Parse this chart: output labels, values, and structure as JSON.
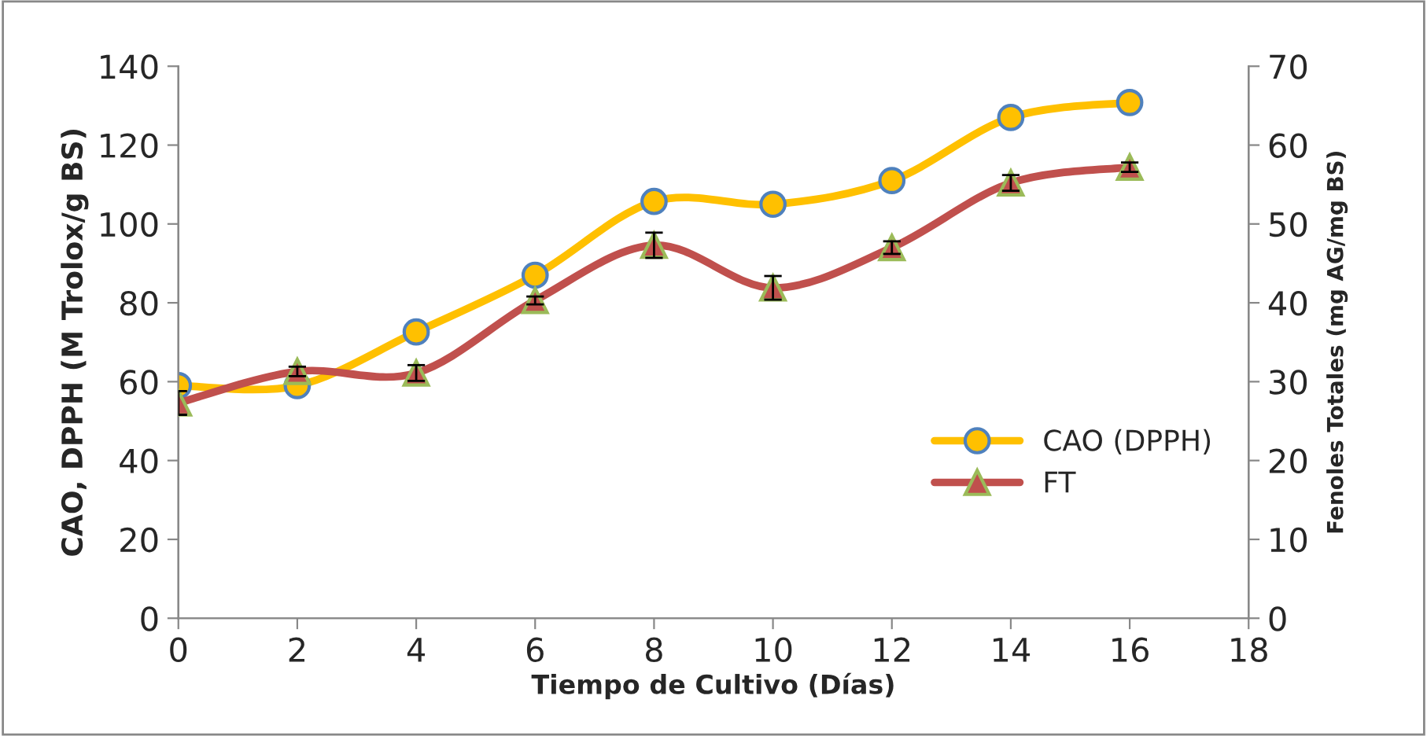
{
  "chart_data": {
    "type": "line",
    "xlabel": "Tiempo de Cultivo (Días)",
    "ylabel": "CAO, DPPH (M Trolox/g BS)",
    "y2label": "Fenoles Totales (mg AG/mg BS)",
    "x": [
      0,
      2,
      4,
      6,
      8,
      10,
      12,
      14,
      16
    ],
    "series": [
      {
        "name": "CAO (DPPH)",
        "color": "#ffc000",
        "marker": "circle",
        "values": [
          59,
          59,
          72.6,
          87,
          105.7,
          105,
          111,
          127,
          130.8
        ]
      },
      {
        "name": "FT",
        "color": "#c0504d",
        "marker": "triangle",
        "axis": "y2",
        "values": [
          27.3,
          31.3,
          31.1,
          40.3,
          47.3,
          41.9,
          47,
          55.2,
          57.2
        ],
        "errors": [
          1.5,
          0.6,
          1.0,
          0.5,
          1.6,
          1.5,
          0.8,
          1.0,
          0.6
        ]
      }
    ],
    "xlim": [
      0,
      18
    ],
    "xticks": [
      0,
      2,
      4,
      6,
      8,
      10,
      12,
      14,
      16,
      18
    ],
    "ylim": [
      0,
      140
    ],
    "yticks": [
      0,
      20,
      40,
      60,
      80,
      100,
      120,
      140
    ],
    "y2lim": [
      0,
      70
    ],
    "y2ticks": [
      0,
      10,
      20,
      30,
      40,
      50,
      60,
      70
    ],
    "grid": false,
    "legend": "right",
    "line_style": "solid"
  }
}
